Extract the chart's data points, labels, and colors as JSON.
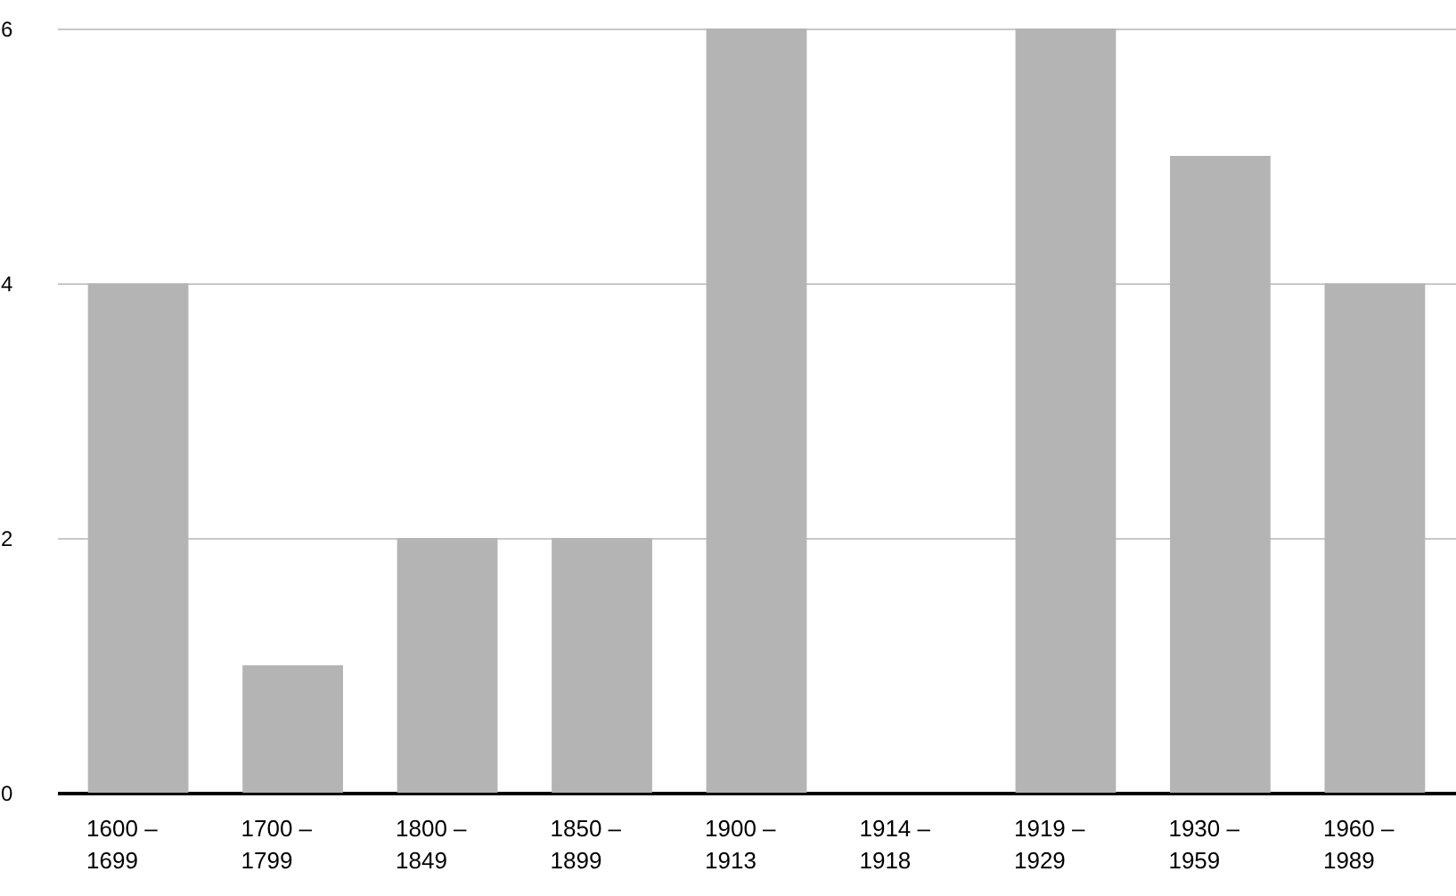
{
  "chart_data": {
    "type": "bar",
    "categories": [
      "1600 –\n1699",
      "1700 –\n1799",
      "1800 –\n1849",
      "1850 –\n1899",
      "1900 –\n1913",
      "1914 –\n1918",
      "1919 –\n1929",
      "1930 –\n1959",
      "1960 –\n1989"
    ],
    "values": [
      4,
      1,
      2,
      2,
      6,
      0,
      6,
      5,
      4
    ],
    "color": "#b4b4b4",
    "ylim": [
      0,
      6
    ],
    "yticks": [
      0,
      2,
      4,
      6
    ],
    "grid": "y"
  }
}
